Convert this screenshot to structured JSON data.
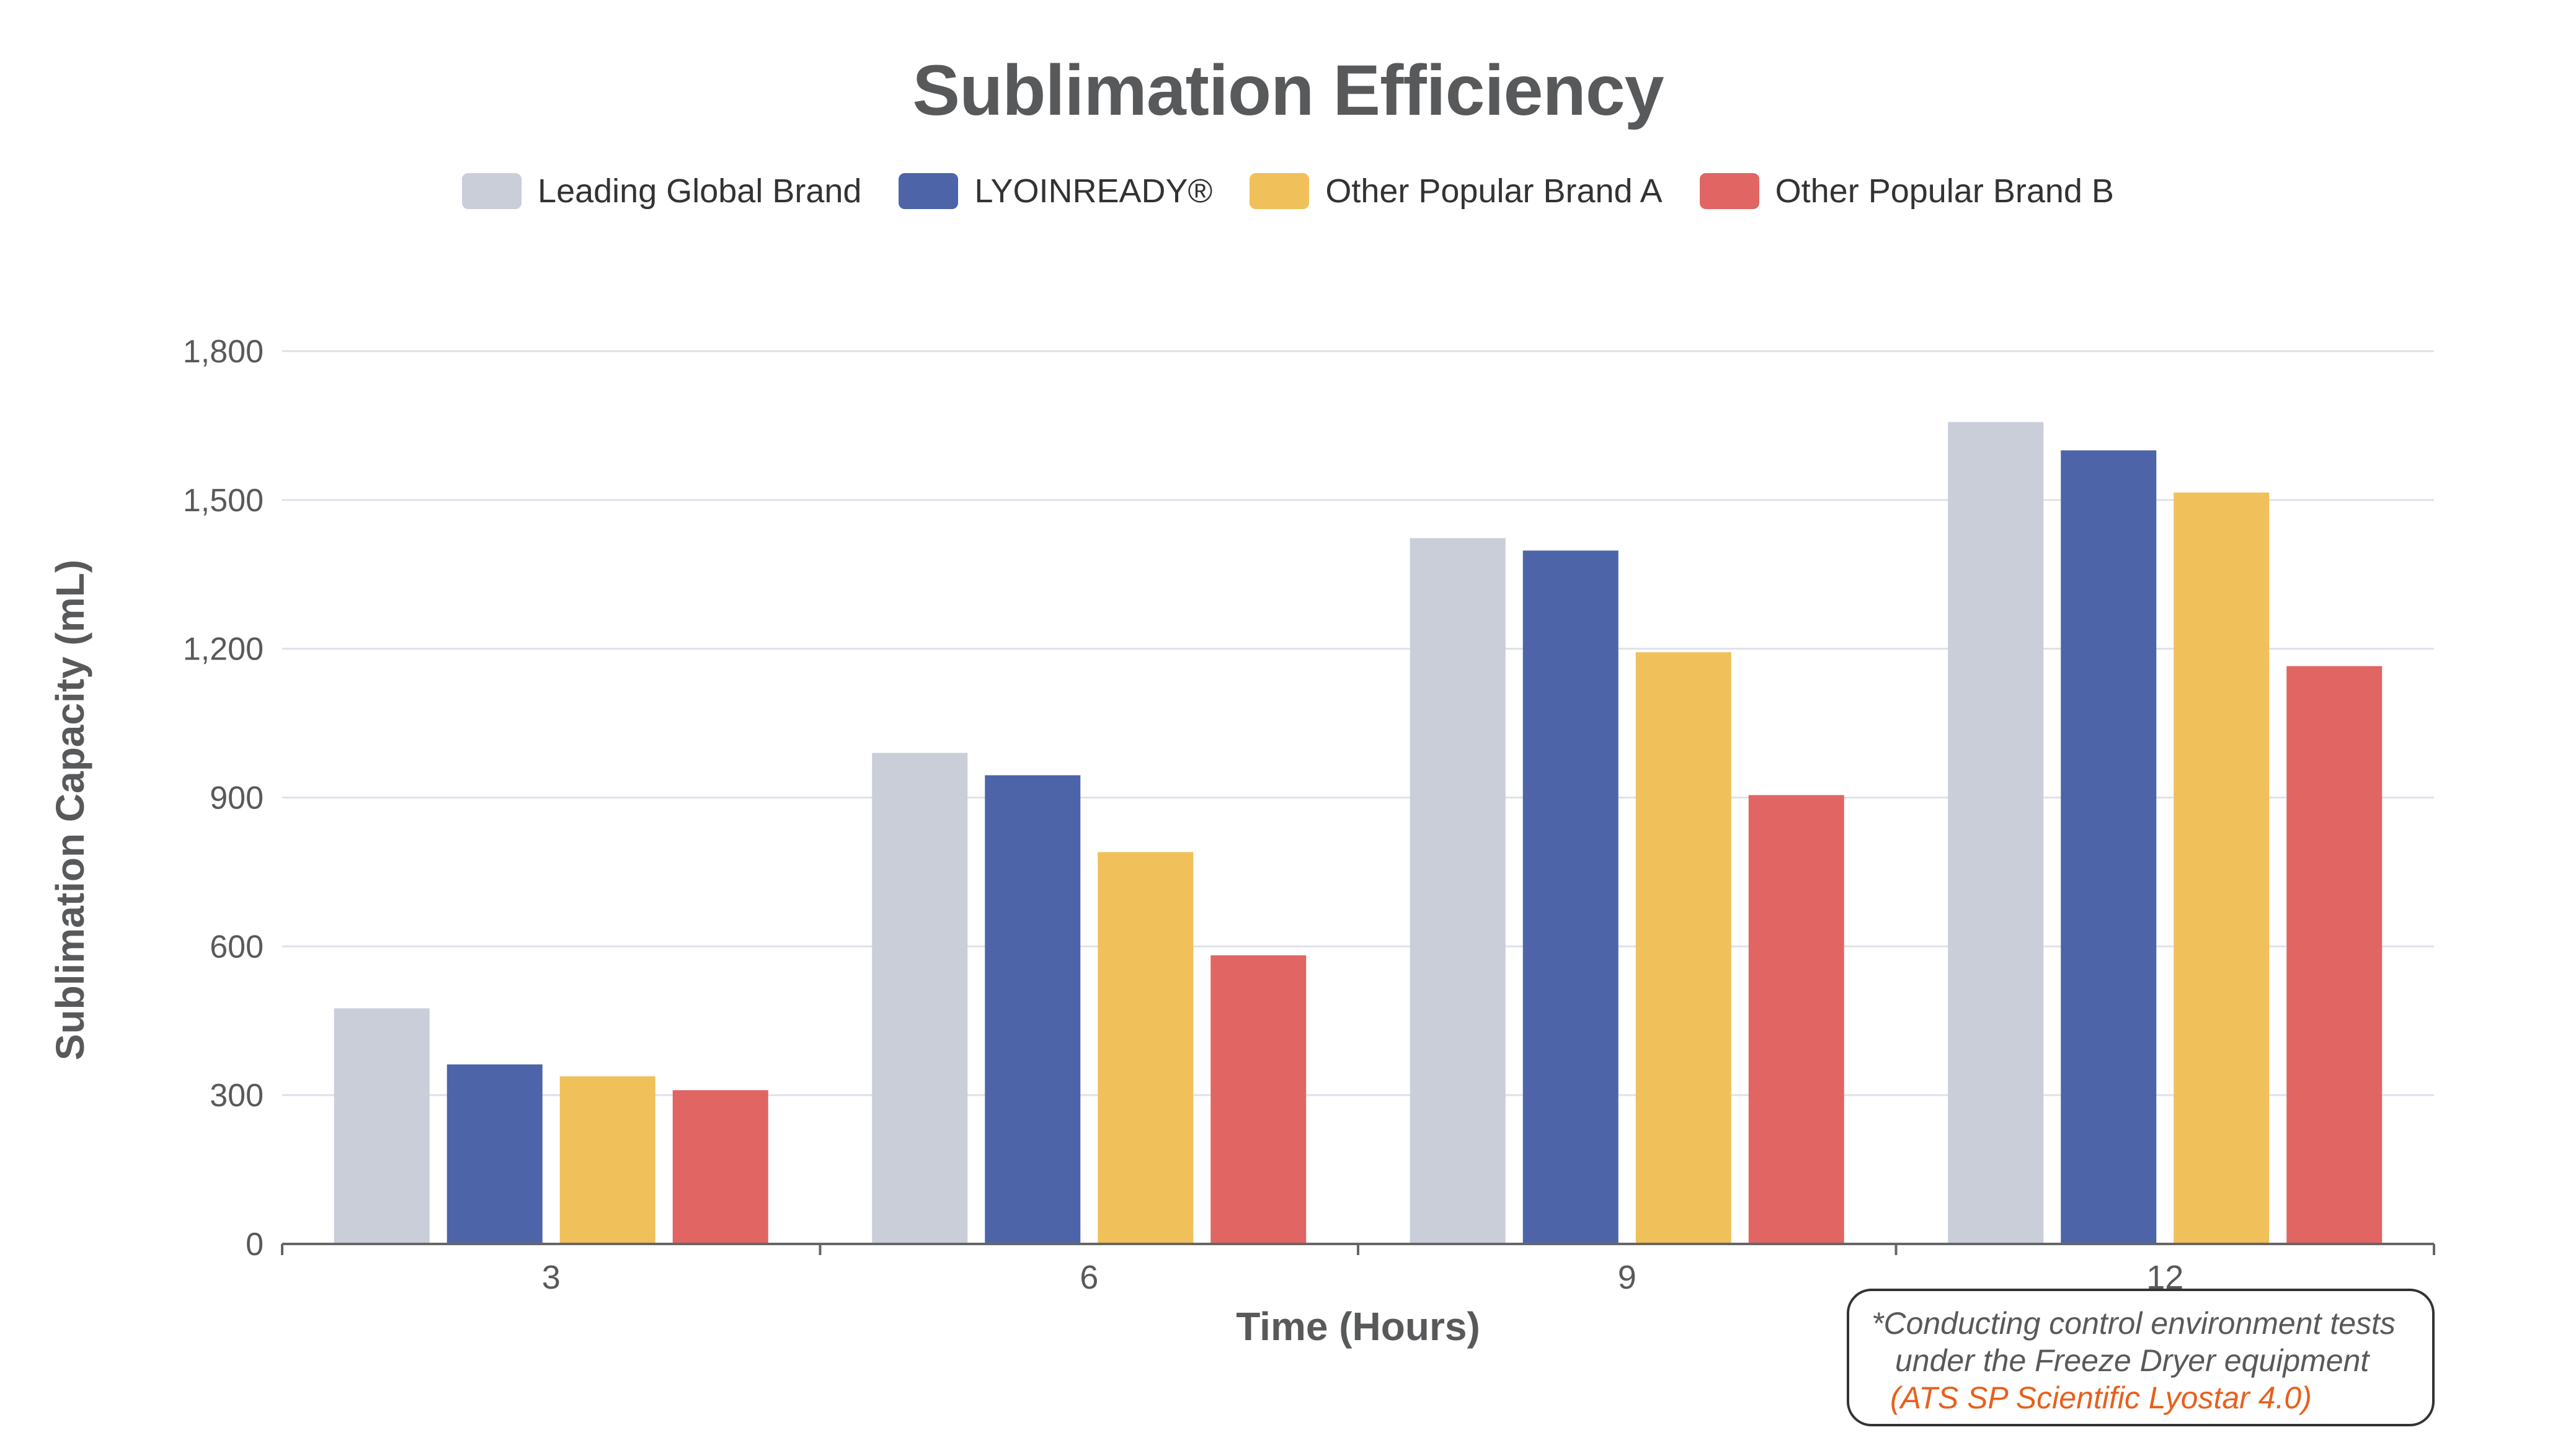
{
  "chart_data": {
    "type": "bar",
    "title": "Sublimation Efficiency",
    "xlabel": "Time (Hours)",
    "ylabel": "Sublimation Capacity (mL)",
    "categories": [
      "3",
      "6",
      "9",
      "12"
    ],
    "yticks": [
      "0",
      "300",
      "600",
      "900",
      "1,200",
      "1,500",
      "1,800"
    ],
    "ylim": [
      0,
      1800
    ],
    "grid": true,
    "legend_position": "top-center",
    "series": [
      {
        "name": "Leading Global Brand",
        "color": "#c9ced8",
        "values": [
          475,
          990,
          1423,
          1657
        ]
      },
      {
        "name": "LYOINREADY®",
        "color": "#4d65a8",
        "values": [
          362,
          945,
          1398,
          1600
        ]
      },
      {
        "name": "Other Popular Brand A",
        "color": "#f0c05a",
        "values": [
          338,
          790,
          1193,
          1515
        ]
      },
      {
        "name": "Other Popular Brand B",
        "color": "#e06563",
        "values": [
          310,
          582,
          905,
          1165
        ]
      }
    ]
  },
  "note": {
    "line1": "*Conducting control environment tests",
    "line2": "under the Freeze Dryer equipment",
    "line3": "(ATS SP Scientific Lyostar 4.0)"
  }
}
